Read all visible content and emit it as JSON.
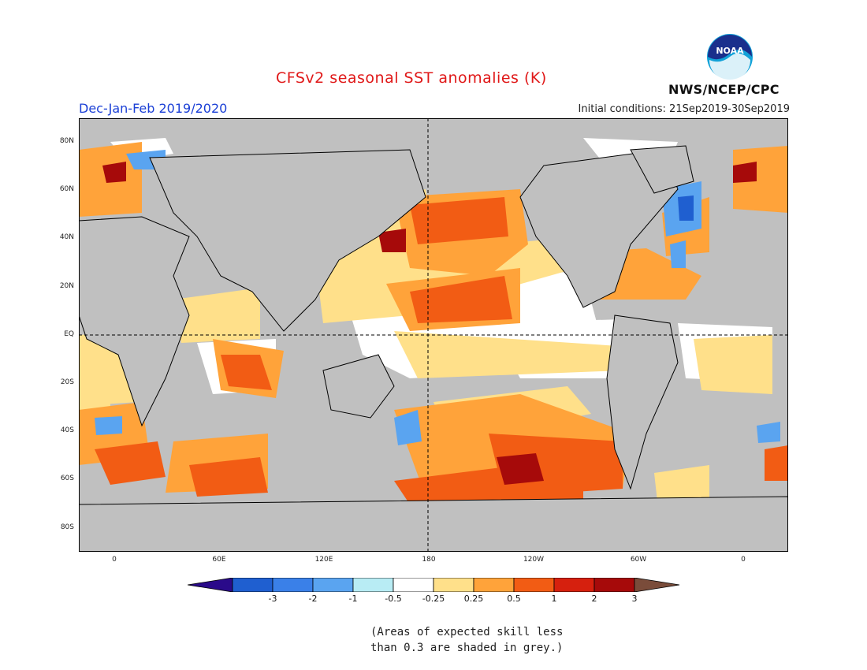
{
  "header": {
    "title": "CFSv2 seasonal SST anomalies (K)",
    "season": "Dec-Jan-Feb 2019/2020",
    "initial_conditions": "Initial conditions: 21Sep2019-30Sep2019",
    "agency": "NWS/NCEP/CPC",
    "logo_text": "NOAA"
  },
  "map": {
    "lat_labels": [
      "80N",
      "60N",
      "40N",
      "20N",
      "EQ",
      "20S",
      "40S",
      "60S",
      "80S"
    ],
    "lon_labels": [
      "0",
      "60E",
      "120E",
      "180",
      "120W",
      "60W",
      "0"
    ],
    "colors": {
      "land": "#c0c0c0",
      "skill_grey": "#c0c0c0",
      "neutral": "#ffffff"
    }
  },
  "colorbar": {
    "tick_labels": [
      "-3",
      "-2",
      "-1",
      "-0.5",
      "-0.25",
      "0.25",
      "0.5",
      "1",
      "2",
      "3"
    ],
    "colors": [
      "#2a0a8a",
      "#1f5fd0",
      "#3a80e8",
      "#5aa4f0",
      "#b8ecf4",
      "#ffffff",
      "#ffe08a",
      "#ffa33a",
      "#f25c14",
      "#d6200e",
      "#a60a0a",
      "#7a4c3a"
    ]
  },
  "footnote": {
    "line1": "(Areas of expected skill less",
    "line2": "than 0.3 are shaded in grey.)"
  }
}
